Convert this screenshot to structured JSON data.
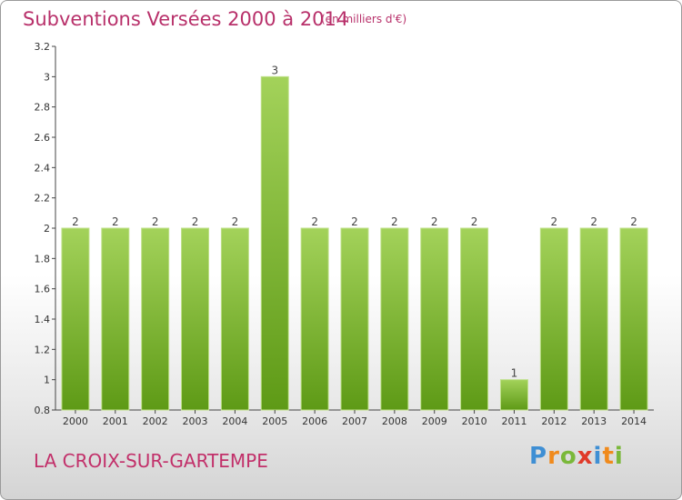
{
  "header": {
    "title": "Subventions Versées 2000 à 2014",
    "subtitle": "(en milliers d'€)"
  },
  "footer": {
    "commune": "LA CROIX-SUR-GARTEMPE",
    "brand_letters": [
      "P",
      "r",
      "o",
      "x",
      "i",
      "t",
      "i"
    ],
    "brand_colors": [
      "#3f8fd4",
      "#f08a1c",
      "#7ab83a",
      "#e03a2a",
      "#3f8fd4",
      "#f08a1c",
      "#7ab83a"
    ]
  },
  "chart_data": {
    "type": "bar",
    "categories": [
      "2000",
      "2001",
      "2002",
      "2003",
      "2004",
      "2005",
      "2006",
      "2007",
      "2008",
      "2009",
      "2010",
      "2011",
      "2012",
      "2013",
      "2014"
    ],
    "values": [
      2,
      2,
      2,
      2,
      2,
      3,
      2,
      2,
      2,
      2,
      2,
      1,
      2,
      2,
      2
    ],
    "data_labels": [
      "2",
      "2",
      "2",
      "2",
      "2",
      "3",
      "2",
      "2",
      "2",
      "2",
      "2",
      "1",
      "2",
      "2",
      "2"
    ],
    "ylim": [
      0.8,
      3.2
    ],
    "yticks": [
      0.8,
      1,
      1.2,
      1.4,
      1.6,
      1.8,
      2,
      2.2,
      2.4,
      2.6,
      2.8,
      3,
      3.2
    ],
    "ytick_labels": [
      "0.8",
      "1",
      "1.2",
      "1.4",
      "1.6",
      "1.8",
      "2",
      "2.2",
      "2.4",
      "2.6",
      "2.8",
      "3",
      "3.2"
    ],
    "grid": false,
    "colors": {
      "bar_dark": "#5e9a16",
      "bar_light": "#a3d25a",
      "bar_edge": "#bfe08a"
    }
  }
}
